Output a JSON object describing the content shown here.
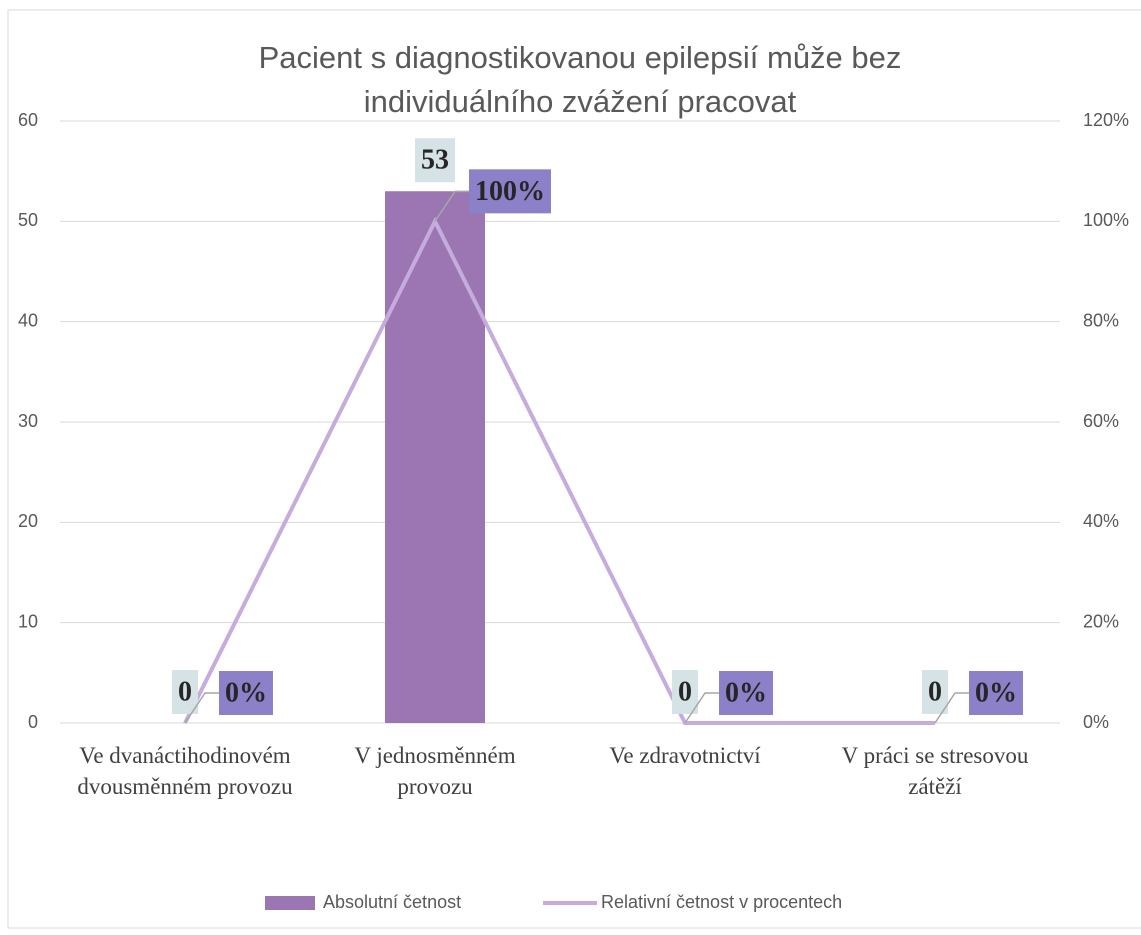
{
  "chart_data": {
    "type": "bar_line",
    "title": "Pacient s diagnostikovanou epilepsií může bez individuálního zvážení pracovat",
    "categories": [
      "Ve dvanáctihodinovém dvousměnném provozu",
      "V jednosměnném provozu",
      "Ve zdravotnictví",
      "V práci se stresovou zátěží"
    ],
    "series": [
      {
        "name": "Absolutní četnost",
        "type": "bar",
        "color": "#9b76b3",
        "values": [
          0,
          53,
          0,
          0
        ]
      },
      {
        "name": "Relativní četnost v procentech",
        "type": "line",
        "axis": "y2",
        "color": "#c5acdc",
        "values": [
          0,
          100,
          0,
          0
        ],
        "value_labels": [
          "0%",
          "100%",
          "0%",
          "0%"
        ]
      }
    ],
    "ylim": [
      0,
      60
    ],
    "yticks": [
      0,
      10,
      20,
      30,
      40,
      50,
      60
    ],
    "y2lim": [
      0,
      120
    ],
    "y2ticks": [
      {
        "value": 0,
        "label": "0%"
      },
      {
        "value": 20,
        "label": "20%"
      },
      {
        "value": 40,
        "label": "40%"
      },
      {
        "value": 60,
        "label": "60%"
      },
      {
        "value": 80,
        "label": "80%"
      },
      {
        "value": 100,
        "label": "100%"
      },
      {
        "value": 120,
        "label": "120%"
      }
    ],
    "grid": true,
    "legend": "bottom"
  }
}
